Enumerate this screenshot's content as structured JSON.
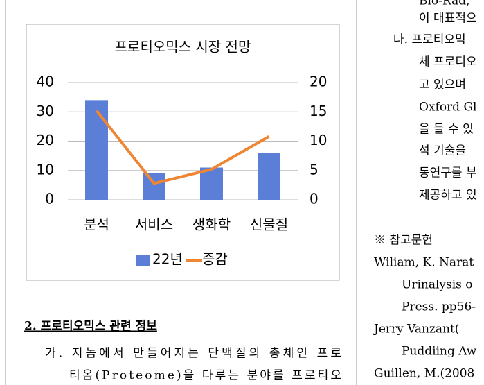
{
  "chart_data": {
    "type": "bar",
    "title": "프로티오믹스 시장 전망",
    "categories": [
      "분석",
      "서비스",
      "생화학",
      "신물질"
    ],
    "series": [
      {
        "name": "22년",
        "color": "#5b7fd6",
        "values": [
          34,
          9,
          11,
          16
        ]
      },
      {
        "name": "증감",
        "color": "#f08532",
        "values": [
          15.2,
          2.8,
          5.2,
          10.8
        ],
        "axis": "y2",
        "type": "line"
      }
    ],
    "ylim": [
      0,
      40
    ],
    "yticks": [
      0,
      10,
      20,
      30,
      40
    ],
    "y2lim": [
      0,
      20
    ],
    "y2ticks": [
      0,
      5,
      10,
      15,
      20
    ],
    "grid": true,
    "legend": "bottom"
  },
  "left": {
    "heading": "2. 프로티오믹스 관련 정보",
    "lines": [
      "가. 지놈에서 만들어지는 단백질의 총체인 프로",
      "티옴(Proteome)을 다루는 분야를 프로티오"
    ]
  },
  "right": {
    "lines": [
      "Bio-Rad,",
      "이 대표적으",
      "나. 프로티오믹",
      "체 프로티오",
      "고  있으며",
      "Oxford Gl",
      "을 들 수 있",
      "석 기술을",
      "동연구를 부",
      "제공하고 있",
      "※ 참고문헌",
      "Wiliam, K. Narat",
      "Urinalysis o",
      "Press. pp56-",
      "Jerry  Vanzant(",
      "Puddiing Aw",
      "Guillen,  M.(2008"
    ]
  }
}
